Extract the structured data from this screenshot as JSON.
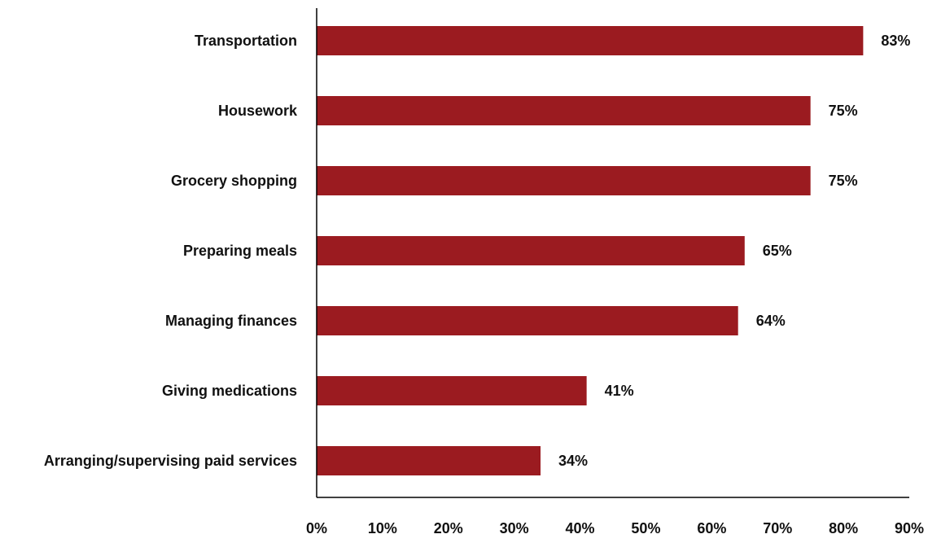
{
  "chart_data": {
    "type": "bar",
    "orientation": "horizontal",
    "title": "",
    "xlabel": "",
    "ylabel": "",
    "categories": [
      "Transportation",
      "Housework",
      "Grocery shopping",
      "Preparing meals",
      "Managing finances",
      "Giving medications",
      "Arranging/supervising paid services"
    ],
    "values": [
      83,
      75,
      75,
      65,
      64,
      41,
      34
    ],
    "data_labels": [
      "83%",
      "75%",
      "75%",
      "65%",
      "64%",
      "41%",
      "34%"
    ],
    "xlim": [
      0,
      90
    ],
    "x_ticks": [
      0,
      10,
      20,
      30,
      40,
      50,
      60,
      70,
      80,
      90
    ],
    "x_tick_labels": [
      "0%",
      "10%",
      "20%",
      "30%",
      "40%",
      "50%",
      "60%",
      "70%",
      "80%",
      "90%"
    ],
    "grid": false,
    "legend": "none",
    "bar_color": "#9b1b20"
  }
}
